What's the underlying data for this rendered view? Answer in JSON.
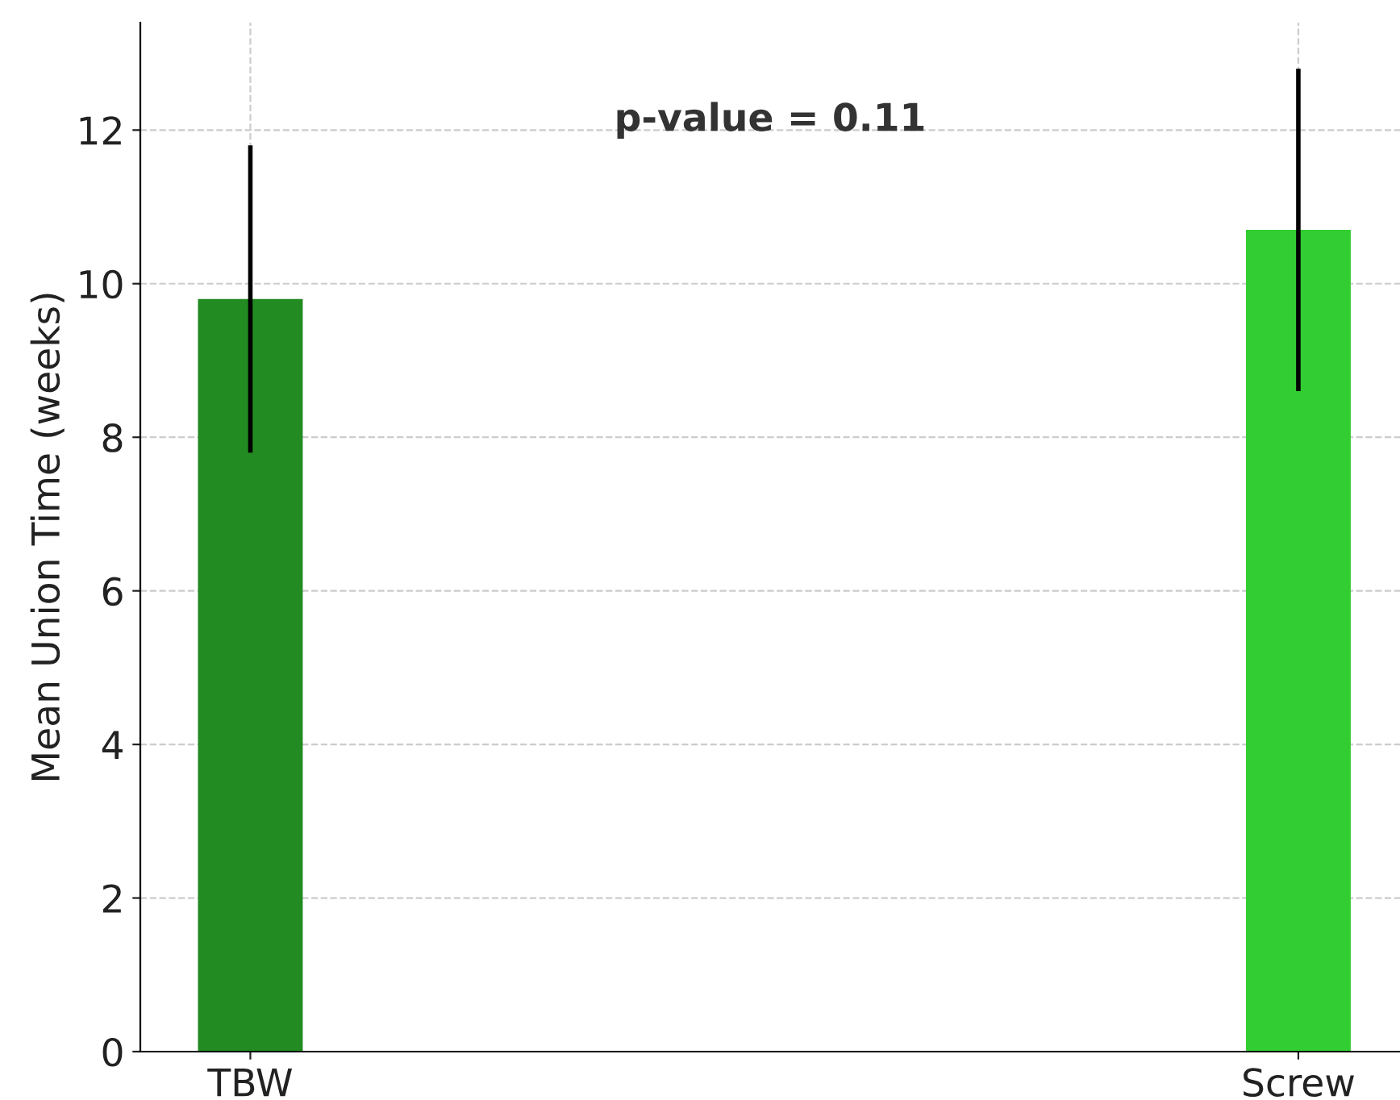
{
  "chart_data": {
    "type": "bar",
    "ylabel": "Mean Union Time (weeks)",
    "categories": [
      "TBW",
      "Screw"
    ],
    "values": [
      9.8,
      10.7
    ],
    "errors": [
      2.0,
      2.1
    ],
    "colors": [
      "#228b22",
      "#32cd32"
    ],
    "ylim": [
      0,
      13.4
    ],
    "yticks": [
      0,
      2,
      4,
      6,
      8,
      10,
      12
    ],
    "grid": true,
    "annotations": [
      "p-value = 0.11"
    ]
  }
}
